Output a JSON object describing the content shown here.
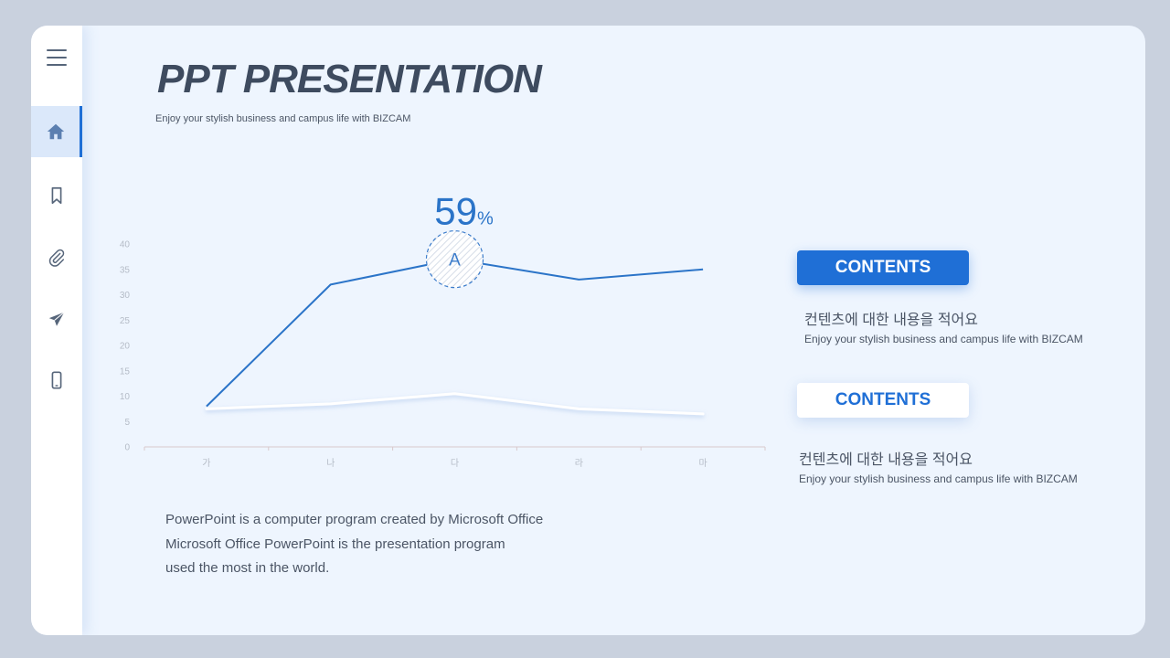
{
  "header": {
    "title": "PPT PRESENTATION",
    "subtitle": "Enjoy your stylish business and campus life with BIZCAM"
  },
  "sidebar": {
    "items": [
      {
        "name": "home",
        "icon": "home-icon",
        "active": true
      },
      {
        "name": "bookmark",
        "icon": "bookmark-icon",
        "active": false
      },
      {
        "name": "attachment",
        "icon": "paperclip-icon",
        "active": false
      },
      {
        "name": "send",
        "icon": "paper-plane-icon",
        "active": false
      },
      {
        "name": "mobile",
        "icon": "smartphone-icon",
        "active": false
      }
    ]
  },
  "highlight": {
    "value": "59",
    "unit": "%",
    "marker_label": "A"
  },
  "chart_data": {
    "type": "line",
    "categories": [
      "가",
      "나",
      "다",
      "라",
      "마"
    ],
    "series": [
      {
        "values": [
          8,
          32,
          37,
          33,
          35
        ],
        "color": "#2b74c8"
      },
      {
        "values": [
          7.5,
          8.5,
          10.5,
          7.5,
          6.5
        ],
        "color": "#ffffff"
      }
    ],
    "ylim": [
      0,
      40
    ],
    "yticks": [
      0,
      5,
      10,
      15,
      20,
      25,
      30,
      35,
      40
    ],
    "marker": {
      "category_index": 2,
      "label": "A"
    },
    "grid": false,
    "legend": "none"
  },
  "body_text": [
    "PowerPoint is a computer program created by Microsoft Office",
    "Microsoft Office PowerPoint is the presentation program",
    "used the most in the world."
  ],
  "contents": [
    {
      "label": "CONTENTS",
      "kr": "컨텐츠에 대한 내용을 적어요",
      "en": "Enjoy your stylish business and campus life with BIZCAM"
    },
    {
      "label": "CONTENTS",
      "kr": "컨텐츠에 대한 내용을 적어요",
      "en": "Enjoy your stylish business and campus life with BIZCAM"
    }
  ],
  "colors": {
    "accent": "#1f6fd6",
    "title": "#3e4b5f",
    "background": "#eef5fe",
    "frame": "#c9d1de"
  }
}
